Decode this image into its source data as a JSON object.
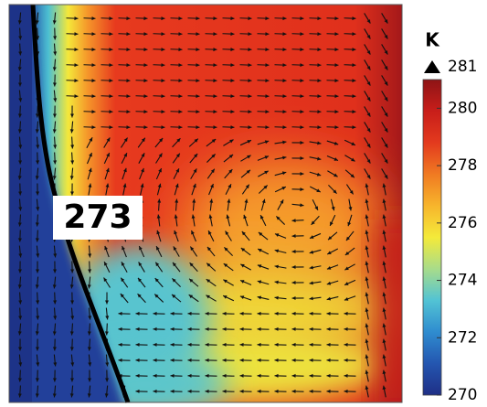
{
  "chart_data": {
    "type": "heatmap",
    "colorbar": {
      "label": "K",
      "lim": [
        270,
        281
      ],
      "ticks": [
        270,
        272,
        274,
        276,
        278,
        280
      ],
      "colormap": [
        "#1f2f86",
        "#2456b0",
        "#2f8ccf",
        "#52c3d4",
        "#a8dc8a",
        "#f4ea3a",
        "#f7b52c",
        "#f07a22",
        "#e33a1e",
        "#c81e1a",
        "#8e1416"
      ]
    },
    "contour_label": 273
  }
}
